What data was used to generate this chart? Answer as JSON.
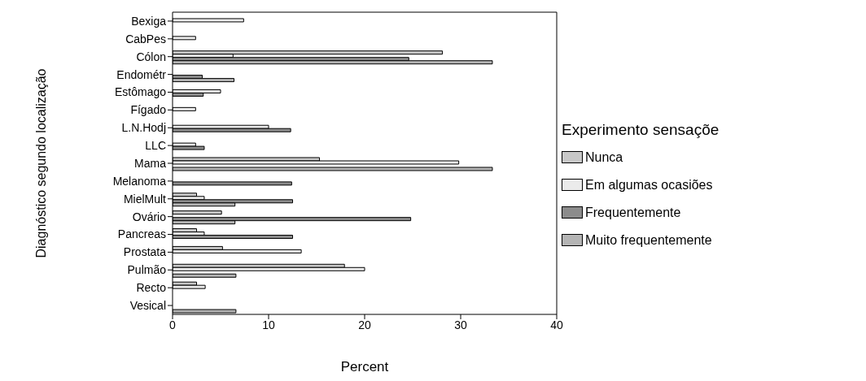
{
  "chart_data": {
    "type": "bar",
    "orientation": "horizontal",
    "xlabel": "Percent",
    "ylabel": "Diagnóstico segundo localização",
    "legend_title": "Experimento sensaçõe",
    "legend": "right",
    "categories": [
      "Bexiga",
      "CabPes",
      "Cólon",
      "Endométr",
      "Estômago",
      "Fígado",
      "L.N.Hodj",
      "LLC",
      "Mama",
      "Melanoma",
      "MielMult",
      "Ovário",
      "Pancreas",
      "Prostata",
      "Pulmão",
      "Recto",
      "Vesical"
    ],
    "series": [
      {
        "name": "Nunca",
        "color": "#c8c8c8",
        "values": [
          null,
          null,
          28.1,
          null,
          null,
          null,
          null,
          null,
          15.3,
          null,
          2.5,
          5.1,
          2.5,
          5.2,
          17.9,
          2.5,
          null
        ]
      },
      {
        "name": "Em algumas ocasiões",
        "color": "#ebebeb",
        "values": [
          7.4,
          2.4,
          6.3,
          null,
          5.0,
          2.4,
          10.0,
          2.4,
          29.8,
          null,
          3.3,
          null,
          3.3,
          13.4,
          20.0,
          3.4,
          null
        ]
      },
      {
        "name": "Frequentemente",
        "color": "#8c8c8c",
        "values": [
          null,
          null,
          24.6,
          3.1,
          3.2,
          null,
          12.3,
          3.3,
          null,
          12.4,
          12.5,
          24.8,
          12.5,
          null,
          null,
          null,
          null
        ]
      },
      {
        "name": "Muito frequentemente",
        "color": "#b4b4b4",
        "values": [
          null,
          null,
          33.3,
          6.4,
          null,
          null,
          null,
          null,
          33.3,
          null,
          6.5,
          6.5,
          null,
          null,
          6.6,
          null,
          6.6
        ]
      }
    ],
    "xlim": [
      0,
      40
    ],
    "xticks": [
      0,
      10,
      20,
      30,
      40
    ],
    "grid": false
  }
}
